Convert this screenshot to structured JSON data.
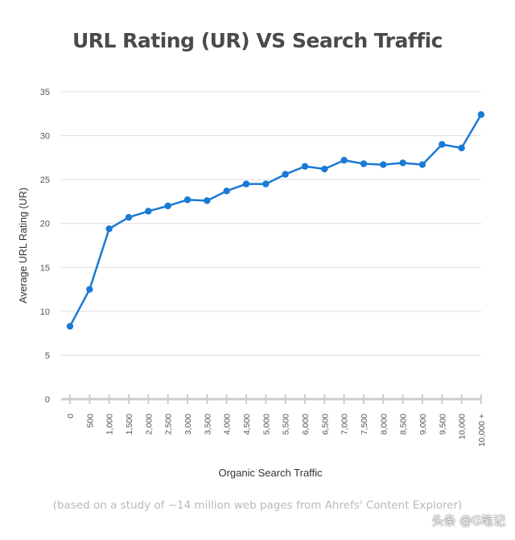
{
  "chart_data": {
    "type": "line",
    "title": "URL Rating (UR) VS Search Traffic",
    "xlabel": "Organic Search Traffic",
    "ylabel": "Average URL Rating (UR)",
    "caption": "(based on a study of ~14 million web pages from Ahrefs' Content Explorer)",
    "categories": [
      "0",
      "500",
      "1,000",
      "1,500",
      "2,000",
      "2,500",
      "3,000",
      "3,500",
      "4,000",
      "4,500",
      "5,000",
      "5,500",
      "6,000",
      "6,500",
      "7,000",
      "7,500",
      "8,000",
      "8,500",
      "9,000",
      "9,500",
      "10,000",
      "10,000 +"
    ],
    "values": [
      8.3,
      12.5,
      19.4,
      20.7,
      21.4,
      22.0,
      22.7,
      22.6,
      23.7,
      24.5,
      24.5,
      25.6,
      26.5,
      26.2,
      27.2,
      26.8,
      26.7,
      26.9,
      26.7,
      29.0,
      28.6,
      32.4
    ],
    "ylim": [
      0,
      35
    ],
    "yticks": [
      0,
      5,
      10,
      15,
      20,
      25,
      30,
      35
    ],
    "grid": true,
    "line_color": "#1a7ad4"
  },
  "watermark": "头条 @G笔记"
}
